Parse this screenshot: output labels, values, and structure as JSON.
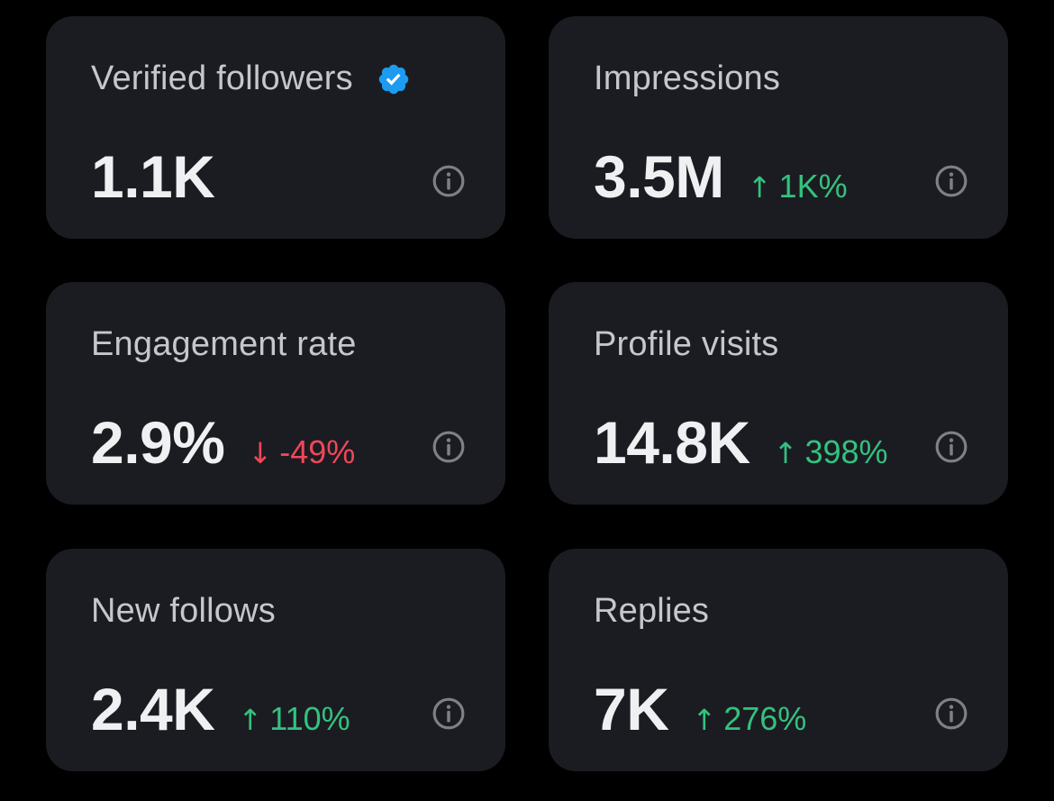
{
  "colors": {
    "background": "#000000",
    "card": "#1b1c21",
    "label": "#c4c7cc",
    "value": "#eef0f2",
    "up": "#33c27f",
    "down": "#f0475a",
    "verified": "#1d9bf0",
    "info_icon": "#7d8087"
  },
  "icons": {
    "verified": "verified-badge-icon",
    "info": "info-icon",
    "up": "arrow-up-icon",
    "down": "arrow-down-icon"
  },
  "cards": [
    {
      "label": "Verified followers",
      "value": "1.1K",
      "change": "",
      "direction": ""
    },
    {
      "label": "Impressions",
      "value": "3.5M",
      "change": "1K%",
      "direction": "up"
    },
    {
      "label": "Engagement rate",
      "value": "2.9%",
      "change": "-49%",
      "direction": "down"
    },
    {
      "label": "Profile visits",
      "value": "14.8K",
      "change": "398%",
      "direction": "up"
    },
    {
      "label": "New follows",
      "value": "2.4K",
      "change": "110%",
      "direction": "up"
    },
    {
      "label": "Replies",
      "value": "7K",
      "change": "276%",
      "direction": "up"
    }
  ]
}
